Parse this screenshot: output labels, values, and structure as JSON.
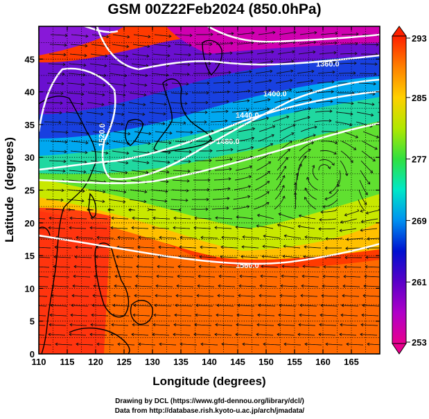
{
  "title": "GSM 00Z22Feb2024 (850.0hPa)",
  "axes": {
    "xlabel": "Longitude (degrees)",
    "ylabel": "Latitude  (degrees)",
    "xlim": [
      110,
      170
    ],
    "ylim": [
      0,
      50
    ],
    "xticks": [
      110,
      115,
      120,
      125,
      130,
      135,
      140,
      145,
      150,
      155,
      160,
      165
    ],
    "yticks": [
      0,
      5,
      10,
      15,
      20,
      25,
      30,
      35,
      40,
      45
    ],
    "grid": "dotted black, every 2.5 degrees"
  },
  "colorbar": {
    "range": [
      253,
      293
    ],
    "labels": [
      "293",
      "285",
      "277",
      "269",
      "261",
      "253"
    ],
    "colors": [
      "#e8008e",
      "#b000c8",
      "#5a00c8",
      "#0010d0",
      "#0090f0",
      "#00e8c8",
      "#30e040",
      "#b0e800",
      "#ffd000",
      "#ff8000",
      "#ff2000"
    ]
  },
  "contours": [
    {
      "label": "1360.0"
    },
    {
      "label": "1400.0"
    },
    {
      "label": "1440.0"
    },
    {
      "label": "1480.0"
    },
    {
      "label": "1520.0"
    },
    {
      "label": "1560.0"
    }
  ],
  "credits": {
    "line1": "Drawing by DCL (https://www.gfd-dennou.org/library/dcl/)",
    "line2": "Data from http://database.rish.kyoto-u.ac.jp/arch/jmadata/"
  }
}
